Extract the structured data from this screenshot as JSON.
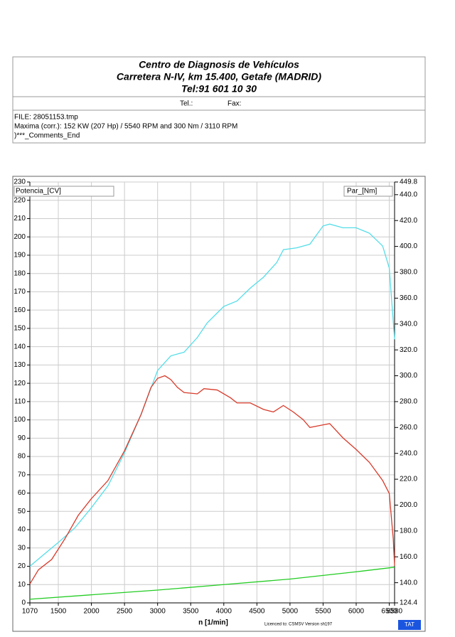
{
  "header": {
    "lines": [
      "Centro de Diagnosis de Vehículos",
      "Carretera N-IV, km 15.400, Getafe (MADRID)",
      "Tel:91 601 10 30"
    ],
    "tel": "Tel.:",
    "fax": "Fax:",
    "info": [
      "FILE: 28051153.tmp",
      "Maxima (corr.):  152 KW (207 Hp) /  5540 RPM  and   300 Nm /  3110 RPM",
      ")***_Comments_End"
    ]
  },
  "chart_data": {
    "type": "line",
    "xlabel": "n  [1/min]",
    "legend_left": "Potencia_[CV]",
    "legend_right": "Par_[Nm]",
    "grid": true,
    "xlim": [
      1070,
      6580
    ],
    "xticks": [
      1070,
      1500,
      2000,
      2500,
      3000,
      3500,
      4000,
      4500,
      5000,
      5500,
      6000,
      6500,
      6580
    ],
    "ylim": [
      0,
      230
    ],
    "yticks": [
      0,
      10,
      20,
      30,
      40,
      50,
      60,
      70,
      80,
      90,
      100,
      110,
      120,
      130,
      140,
      150,
      160,
      170,
      180,
      190,
      200,
      210,
      220,
      230
    ],
    "y2lim": [
      124.4,
      449.8
    ],
    "y2ticks": [
      124.4,
      {
        "value": 140,
        "label": "140.0"
      },
      {
        "value": 160,
        "label": "160.0"
      },
      {
        "value": 180,
        "label": "180.0"
      },
      {
        "value": 200,
        "label": "200.0"
      },
      {
        "value": 220,
        "label": "220.0"
      },
      {
        "value": 240,
        "label": "240.0"
      },
      {
        "value": 260,
        "label": "260.0"
      },
      {
        "value": 280,
        "label": "280.0"
      },
      {
        "value": 300,
        "label": "300.0"
      },
      {
        "value": 320,
        "label": "320.0"
      },
      {
        "value": 340,
        "label": "340.0"
      },
      {
        "value": 360,
        "label": "360.0"
      },
      {
        "value": 380,
        "label": "380.0"
      },
      {
        "value": 400,
        "label": "400.0"
      },
      {
        "value": 420,
        "label": "420.0"
      },
      {
        "value": 440,
        "label": "440.0"
      },
      449.8
    ],
    "series": [
      {
        "color": "#55dde8",
        "axis": "y",
        "x": [
          1070,
          1300,
          1500,
          1750,
          2000,
          2250,
          2500,
          2750,
          3000,
          3200,
          3400,
          3600,
          3750,
          4000,
          4200,
          4400,
          4600,
          4800,
          4900,
          5100,
          5300,
          5500,
          5600,
          5800,
          6000,
          6200,
          6400,
          6500,
          6580
        ],
        "values": [
          20,
          27,
          33,
          41,
          52,
          64,
          82,
          103,
          127,
          135,
          137,
          145,
          153,
          162,
          165,
          172,
          178,
          186,
          193,
          194,
          196,
          206,
          207,
          205,
          205,
          202,
          195,
          183,
          144
        ]
      },
      {
        "color": "#d83a2a",
        "axis": "y2",
        "x": [
          1070,
          1200,
          1400,
          1600,
          1800,
          2000,
          2250,
          2500,
          2750,
          2900,
          3000,
          3110,
          3200,
          3300,
          3400,
          3600,
          3700,
          3900,
          4100,
          4200,
          4400,
          4600,
          4750,
          4900,
          5050,
          5200,
          5300,
          5500,
          5600,
          5800,
          6000,
          6200,
          6400,
          6500,
          6560,
          6580
        ],
        "values": [
          139,
          150,
          158,
          174,
          192,
          205,
          219,
          242,
          270,
          291,
          298,
          300,
          297,
          291,
          287,
          286,
          290,
          289,
          283,
          279,
          279,
          274,
          272,
          277,
          272,
          266,
          260,
          262,
          263,
          252,
          243,
          233,
          219,
          209,
          174,
          153
        ]
      },
      {
        "color": "#22cc22",
        "axis": "y",
        "x": [
          1070,
          3000,
          4000,
          5000,
          6000,
          6580
        ],
        "values": [
          2,
          7,
          10,
          13,
          17,
          19.5
        ]
      }
    ]
  },
  "footer": {
    "license": "Licenced to: CSMSV  Version sh197",
    "logo": "TAT"
  }
}
